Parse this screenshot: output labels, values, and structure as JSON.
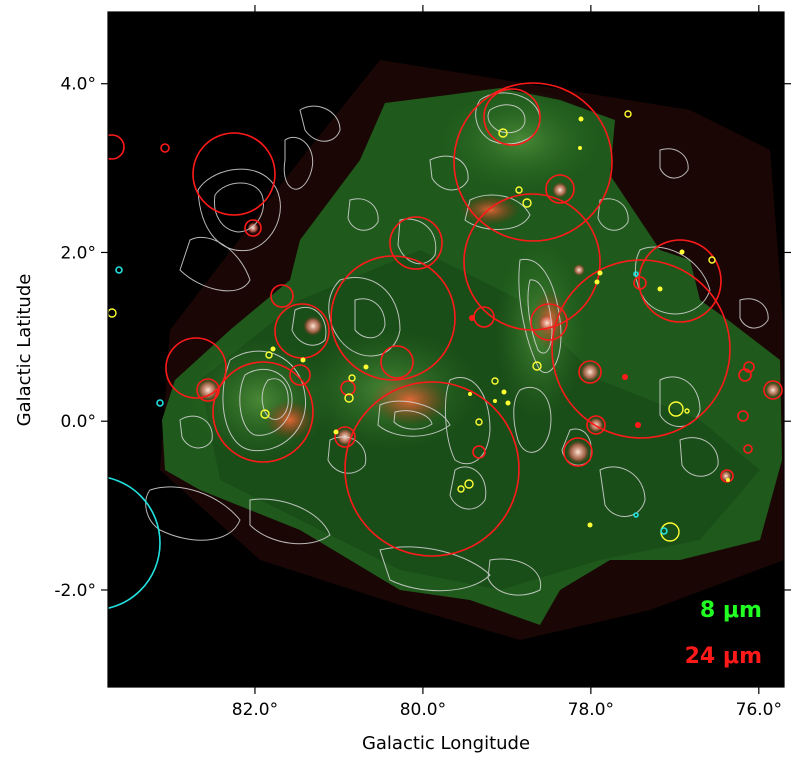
{
  "figure": {
    "xlabel": "Galactic Longitude",
    "ylabel": "Galactic Latitude",
    "xticks": [
      {
        "value": 82,
        "label": "82.0°"
      },
      {
        "value": 80,
        "label": "80.0°"
      },
      {
        "value": 78,
        "label": "78.0°"
      },
      {
        "value": 76,
        "label": "76.0°"
      }
    ],
    "yticks": [
      {
        "value": 4,
        "label": "4.0°"
      },
      {
        "value": 2,
        "label": "2.0°"
      },
      {
        "value": 0,
        "label": "0.0°"
      },
      {
        "value": -2,
        "label": "-2.0°"
      }
    ],
    "xlim": [
      83.75,
      75.7
    ],
    "ylim": [
      -3.15,
      4.85
    ],
    "bands": [
      {
        "label": "8 μm",
        "color": "#22ff22"
      },
      {
        "label": "24 μm",
        "color": "#ff1a1a"
      }
    ],
    "colors": {
      "background": "#000000",
      "mosaic": "#1f5a1c",
      "contours": "#d8d8d8",
      "red_circles": "#ff1a1a",
      "yellow_circles": "#ffff33",
      "cyan_circles": "#22e0e0"
    }
  }
}
